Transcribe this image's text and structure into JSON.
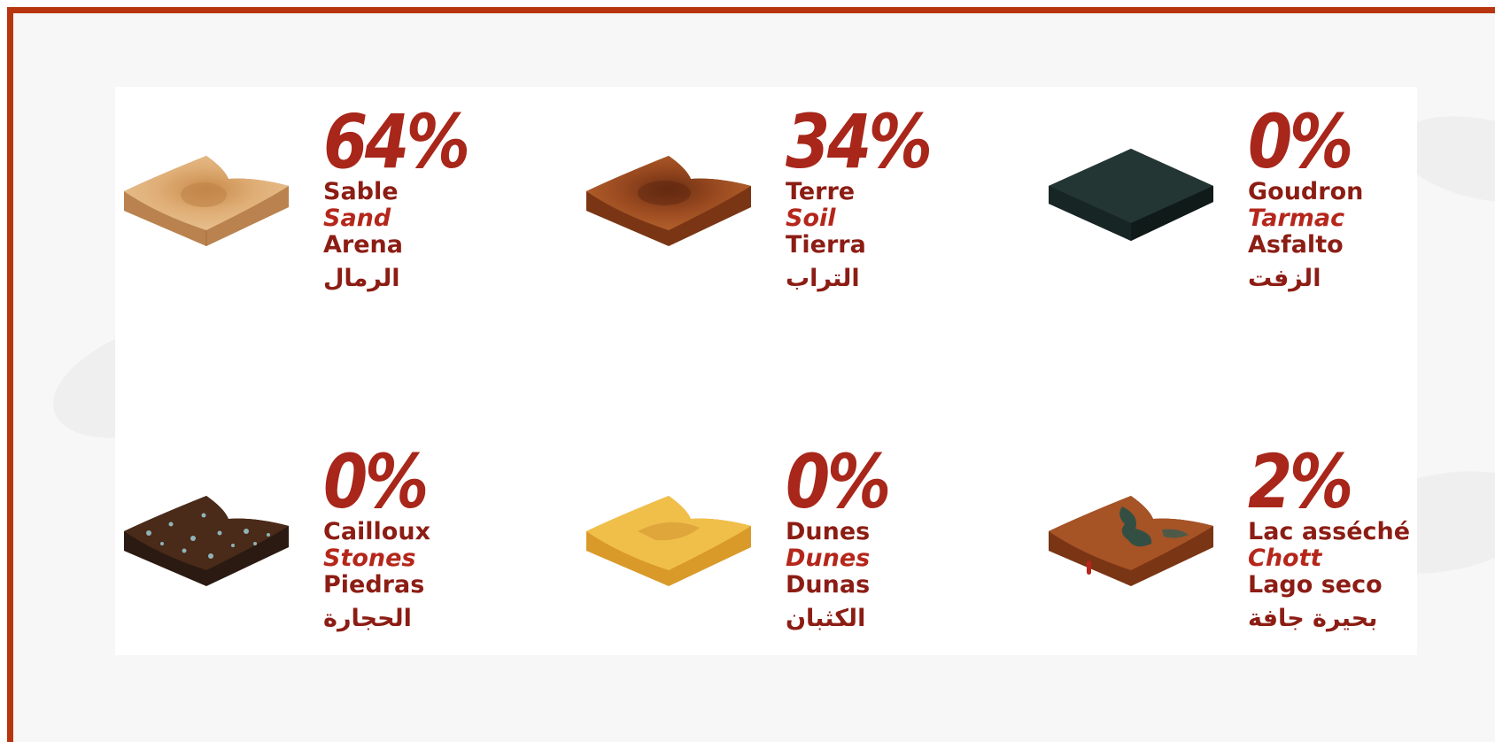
{
  "colors": {
    "border": "#b8360f",
    "accent": "#a8261a",
    "text": "#8c1d14"
  },
  "terrains": [
    {
      "percent": "64%",
      "fr": "Sable",
      "en": "Sand",
      "es": "Arena",
      "ar": "الرمال",
      "icon": "sand-tile-icon"
    },
    {
      "percent": "34%",
      "fr": "Terre",
      "en": "Soil",
      "es": "Tierra",
      "ar": "التراب",
      "icon": "soil-tile-icon"
    },
    {
      "percent": "0%",
      "fr": "Goudron",
      "en": "Tarmac",
      "es": "Asfalto",
      "ar": "الزفت",
      "icon": "tarmac-tile-icon"
    },
    {
      "percent": "0%",
      "fr": "Cailloux",
      "en": "Stones",
      "es": "Piedras",
      "ar": "الحجارة",
      "icon": "stones-tile-icon"
    },
    {
      "percent": "0%",
      "fr": "Dunes",
      "en": "Dunes",
      "es": "Dunas",
      "ar": "الكثبان",
      "icon": "dunes-tile-icon"
    },
    {
      "percent": "2%",
      "fr": "Lac asséché",
      "en": "Chott",
      "es": "Lago seco",
      "ar": "بحيرة جافة",
      "icon": "dry-lake-tile-icon"
    }
  ]
}
